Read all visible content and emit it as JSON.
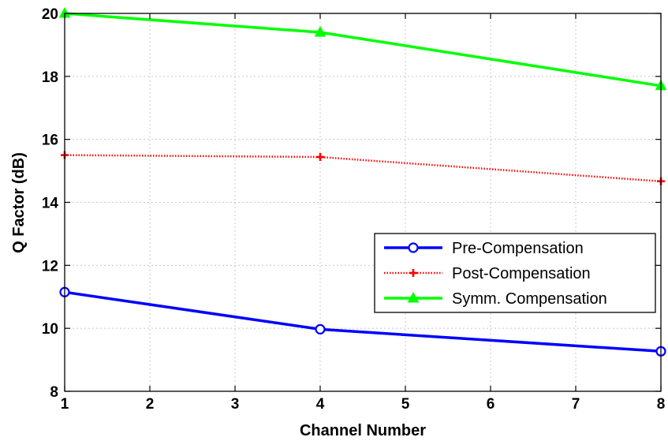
{
  "chart_data": {
    "type": "line",
    "xlabel": "Channel Number",
    "ylabel": "Q Factor (dB)",
    "xlim": [
      1,
      8
    ],
    "ylim": [
      8,
      20
    ],
    "xticks": [
      "1",
      "2",
      "3",
      "4",
      "5",
      "6",
      "7",
      "8"
    ],
    "yticks": [
      "8",
      "10",
      "12",
      "14",
      "16",
      "18",
      "20"
    ],
    "grid": true,
    "legend_position": "lower-right",
    "series": [
      {
        "name": "Pre-Compensation",
        "color": "#0000ff",
        "marker": "circle",
        "line": "solid",
        "x": [
          1,
          4,
          8
        ],
        "y": [
          11.15,
          9.97,
          9.27
        ]
      },
      {
        "name": "Post-Compensation",
        "color": "#ff0000",
        "marker": "plus",
        "line": "dotted",
        "x": [
          1,
          4,
          8
        ],
        "y": [
          15.5,
          15.44,
          14.67
        ]
      },
      {
        "name": "Symm. Compensation",
        "color": "#00ff00",
        "marker": "triangle",
        "line": "solid",
        "x": [
          1,
          4,
          8
        ],
        "y": [
          20.0,
          19.4,
          17.7
        ]
      }
    ]
  }
}
